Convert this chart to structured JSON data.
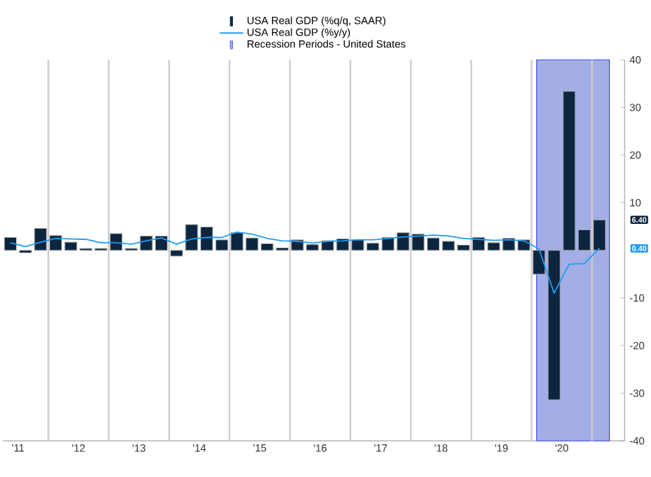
{
  "chart_data": {
    "type": "bar",
    "x": [
      "2011-05-15",
      "2011-08-15",
      "2011-11-15",
      "2012-02-15",
      "2012-05-15",
      "2012-08-15",
      "2012-11-15",
      "2013-02-15",
      "2013-05-15",
      "2013-08-15",
      "2013-11-15",
      "2014-02-15",
      "2014-05-15",
      "2014-08-15",
      "2014-11-15",
      "2015-02-15",
      "2015-05-15",
      "2015-08-15",
      "2015-11-15",
      "2016-02-15",
      "2016-05-15",
      "2016-08-15",
      "2016-11-15",
      "2017-02-15",
      "2017-05-15",
      "2017-08-15",
      "2017-11-15",
      "2018-02-15",
      "2018-05-15",
      "2018-08-15",
      "2018-11-15",
      "2019-02-15",
      "2019-05-15",
      "2019-08-15",
      "2019-11-15",
      "2020-02-15",
      "2020-05-15",
      "2020-08-15",
      "2020-11-15",
      "2021-02-15"
    ],
    "series": [
      {
        "name": "USA Real GDP (%q/q, SAAR)",
        "color": "#0c2640",
        "values": [
          2.7,
          -0.5,
          4.6,
          3.1,
          1.7,
          0.4,
          0.4,
          3.5,
          0.4,
          3.0,
          3.0,
          -1.2,
          5.4,
          4.9,
          2.2,
          3.7,
          2.6,
          1.4,
          0.5,
          2.2,
          1.2,
          2.0,
          2.4,
          2.2,
          1.5,
          2.7,
          3.7,
          3.4,
          2.6,
          1.9,
          1.1,
          2.7,
          1.6,
          2.5,
          2.2,
          -5.0,
          -31.4,
          33.4,
          4.3,
          6.4
        ]
      },
      {
        "name": "USA Real GDP (%y/y)",
        "type": "line",
        "color": "#1e9cf0",
        "values": [
          1.6,
          0.8,
          1.7,
          2.5,
          2.4,
          2.3,
          1.6,
          1.6,
          1.3,
          2.0,
          2.6,
          1.3,
          2.4,
          2.7,
          2.7,
          3.8,
          3.4,
          2.5,
          2.0,
          1.9,
          1.5,
          1.9,
          2.0,
          2.2,
          2.2,
          2.5,
          2.8,
          3.0,
          3.2,
          3.0,
          2.5,
          2.3,
          2.1,
          2.2,
          2.0,
          0.3,
          -9.0,
          -2.9,
          -2.8,
          0.4
        ]
      }
    ],
    "bands": [
      {
        "axis": "x",
        "from": "2020-02",
        "to": "2021-04-15",
        "label": "Recession Periods - United States",
        "color": "#a3aee6"
      }
    ],
    "annotations": [
      "6.40",
      "0.40"
    ],
    "xlim": [
      "2011-03-30",
      "2021-07-15"
    ],
    "xticks": [
      {
        "value": "2011-07",
        "label": "'11"
      },
      {
        "value": "2012-01",
        "label": null
      },
      {
        "value": "2012-07",
        "label": "'12"
      },
      {
        "value": "2013-01",
        "label": null
      },
      {
        "value": "2013-07",
        "label": "'13"
      },
      {
        "value": "2014-01",
        "label": null
      },
      {
        "value": "2014-07",
        "label": "'14"
      },
      {
        "value": "2015-01",
        "label": null
      },
      {
        "value": "2015-07",
        "label": "'15"
      },
      {
        "value": "2016-01",
        "label": null
      },
      {
        "value": "2016-07",
        "label": "'16"
      },
      {
        "value": "2017-01",
        "label": null
      },
      {
        "value": "2017-07",
        "label": "'17"
      },
      {
        "value": "2018-01",
        "label": null
      },
      {
        "value": "2018-07",
        "label": "'18"
      },
      {
        "value": "2019-01",
        "label": null
      },
      {
        "value": "2019-07",
        "label": "'19"
      },
      {
        "value": "2020-01",
        "label": null
      },
      {
        "value": "2020-07",
        "label": "'20"
      },
      {
        "value": "2021-01",
        "label": null
      }
    ],
    "ylim": [
      -40,
      40
    ],
    "yticks": [
      -40,
      -30,
      -20,
      -10,
      10,
      20,
      30,
      40
    ],
    "grid": "x",
    "legend": "top"
  }
}
